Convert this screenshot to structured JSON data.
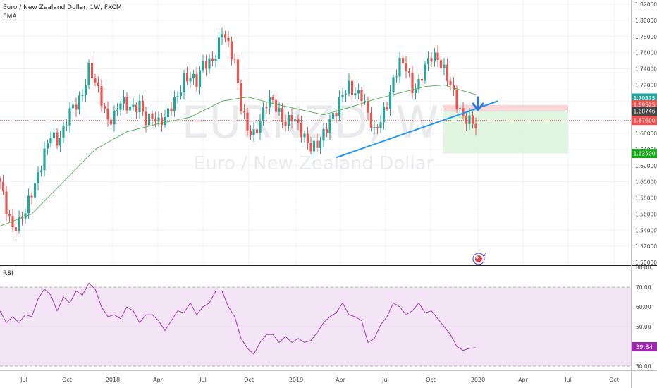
{
  "header": {
    "symbol_line": "Euro / New Zealand Dollar, 1W, FXCM",
    "indicator": "EMA"
  },
  "watermark": {
    "ticker": "EURNZD, W",
    "name": "Euro / New Zealand Dollar"
  },
  "rsi_panel": {
    "label": "RSI",
    "current_badge": "39.34"
  },
  "price_badges": [
    {
      "text": "1.70375",
      "color": "#26a69a"
    },
    {
      "text": "1.69525",
      "color": "#ef5350"
    },
    {
      "text": "1.68746",
      "color": "#444444"
    },
    {
      "text": "1.67600",
      "color": "#ef5350"
    },
    {
      "text": "1.63500",
      "color": "#19a51b"
    }
  ],
  "colors": {
    "up": "#26a69a",
    "down": "#ef5350",
    "ema": "#4caf50",
    "trendline": "#2196f3",
    "rsi": "#9c27b0",
    "rsi_band": "#f3e5f5",
    "stop_zone": "#f8c8c8",
    "target_zone": "#d9f2d9"
  },
  "icons": [
    "arrow-down-icon",
    "tradingview-logo-icon"
  ],
  "logo_badge": "2",
  "chart_data": [
    {
      "type": "candlestick",
      "title": "Euro / New Zealand Dollar, 1W, FXCM",
      "y_ticks": [
        "1.82000",
        "1.80000",
        "1.78000",
        "1.76000",
        "1.74000",
        "1.72000",
        "1.70000",
        "1.68000",
        "1.66000",
        "1.64000",
        "1.62000",
        "1.60000",
        "1.58000",
        "1.56000",
        "1.54000",
        "1.52000",
        "1.50000"
      ],
      "ylim": [
        1.5,
        1.822
      ],
      "x_ticks": [
        "Jul",
        "Oct",
        "2018",
        "Apr",
        "Jul",
        "Oct",
        "2019",
        "Apr",
        "Jul",
        "Oct",
        "2020",
        "Apr",
        "Jul",
        "Oct"
      ],
      "anchors": [
        [
          0,
          1.6
        ],
        [
          2,
          1.57
        ],
        [
          4,
          1.545
        ],
        [
          6,
          1.548
        ],
        [
          8,
          1.56
        ],
        [
          10,
          1.585
        ],
        [
          12,
          1.61
        ],
        [
          14,
          1.64
        ],
        [
          16,
          1.66
        ],
        [
          18,
          1.645
        ],
        [
          20,
          1.66
        ],
        [
          22,
          1.69
        ],
        [
          24,
          1.7
        ],
        [
          26,
          1.71
        ],
        [
          28,
          1.738
        ],
        [
          30,
          1.72
        ],
        [
          32,
          1.7
        ],
        [
          34,
          1.678
        ],
        [
          36,
          1.685
        ],
        [
          38,
          1.7
        ],
        [
          40,
          1.69
        ],
        [
          42,
          1.688
        ],
        [
          44,
          1.698
        ],
        [
          46,
          1.68
        ],
        [
          48,
          1.682
        ],
        [
          50,
          1.67
        ],
        [
          52,
          1.675
        ],
        [
          54,
          1.695
        ],
        [
          56,
          1.71
        ],
        [
          58,
          1.73
        ],
        [
          60,
          1.728
        ],
        [
          62,
          1.72
        ],
        [
          64,
          1.745
        ],
        [
          66,
          1.75
        ],
        [
          68,
          1.76
        ],
        [
          70,
          1.788
        ],
        [
          72,
          1.765
        ],
        [
          74,
          1.745
        ],
        [
          76,
          1.695
        ],
        [
          78,
          1.67
        ],
        [
          80,
          1.66
        ],
        [
          82,
          1.672
        ],
        [
          84,
          1.695
        ],
        [
          86,
          1.7
        ],
        [
          88,
          1.688
        ],
        [
          90,
          1.675
        ],
        [
          92,
          1.68
        ],
        [
          94,
          1.665
        ],
        [
          96,
          1.652
        ],
        [
          98,
          1.645
        ],
        [
          100,
          1.65
        ],
        [
          102,
          1.66
        ],
        [
          104,
          1.672
        ],
        [
          106,
          1.685
        ],
        [
          108,
          1.71
        ],
        [
          110,
          1.722
        ],
        [
          112,
          1.712
        ],
        [
          114,
          1.705
        ],
        [
          116,
          1.68
        ],
        [
          118,
          1.66
        ],
        [
          120,
          1.68
        ],
        [
          122,
          1.7
        ],
        [
          124,
          1.725
        ],
        [
          126,
          1.745
        ],
        [
          128,
          1.74
        ],
        [
          130,
          1.715
        ],
        [
          132,
          1.725
        ],
        [
          134,
          1.745
        ],
        [
          136,
          1.753
        ],
        [
          138,
          1.748
        ],
        [
          140,
          1.738
        ],
        [
          142,
          1.725
        ],
        [
          144,
          1.7
        ],
        [
          146,
          1.678
        ],
        [
          148,
          1.672
        ],
        [
          150,
          1.668
        ]
      ],
      "series": [
        {
          "name": "EMA",
          "values": [
            [
              0,
              1.545
            ],
            [
              10,
              1.56
            ],
            [
              20,
              1.6
            ],
            [
              30,
              1.64
            ],
            [
              40,
              1.662
            ],
            [
              50,
              1.672
            ],
            [
              60,
              1.68
            ],
            [
              70,
              1.7
            ],
            [
              78,
              1.705
            ],
            [
              86,
              1.697
            ],
            [
              94,
              1.69
            ],
            [
              102,
              1.683
            ],
            [
              110,
              1.692
            ],
            [
              118,
              1.702
            ],
            [
              126,
              1.71
            ],
            [
              134,
              1.718
            ],
            [
              140,
              1.72
            ],
            [
              144,
              1.715
            ],
            [
              150,
              1.708
            ]
          ]
        }
      ],
      "trendline": {
        "from": [
          106,
          1.63
        ],
        "to": [
          157,
          1.7
        ]
      },
      "position": {
        "entry": 1.6875,
        "stop": 1.6952,
        "target": 1.635
      }
    },
    {
      "type": "line",
      "title": "RSI",
      "y_ticks": [
        "80.00",
        "70.00",
        "60.00",
        "50.00",
        "40.00",
        "30.00"
      ],
      "ylim": [
        27,
        80
      ],
      "bands": [
        30,
        70
      ],
      "series": [
        {
          "name": "RSI",
          "values": [
            [
              0,
              58
            ],
            [
              2,
              52
            ],
            [
              4,
              55
            ],
            [
              6,
              52
            ],
            [
              8,
              56
            ],
            [
              10,
              55
            ],
            [
              12,
              64
            ],
            [
              14,
              69
            ],
            [
              16,
              66
            ],
            [
              18,
              58
            ],
            [
              20,
              65
            ],
            [
              22,
              62
            ],
            [
              24,
              68
            ],
            [
              26,
              66
            ],
            [
              28,
              72
            ],
            [
              30,
              69
            ],
            [
              32,
              60
            ],
            [
              34,
              55
            ],
            [
              36,
              56
            ],
            [
              38,
              54
            ],
            [
              40,
              60
            ],
            [
              42,
              58
            ],
            [
              44,
              52
            ],
            [
              46,
              56
            ],
            [
              48,
              56
            ],
            [
              50,
              53
            ],
            [
              52,
              48
            ],
            [
              54,
              53
            ],
            [
              56,
              58
            ],
            [
              58,
              57
            ],
            [
              60,
              62
            ],
            [
              62,
              56
            ],
            [
              64,
              60
            ],
            [
              66,
              62
            ],
            [
              68,
              68
            ],
            [
              70,
              68
            ],
            [
              72,
              60
            ],
            [
              74,
              55
            ],
            [
              76,
              44
            ],
            [
              78,
              39
            ],
            [
              80,
              36
            ],
            [
              82,
              42
            ],
            [
              84,
              46
            ],
            [
              86,
              46
            ],
            [
              88,
              42
            ],
            [
              90,
              45
            ],
            [
              92,
              42
            ],
            [
              94,
              44
            ],
            [
              96,
              42
            ],
            [
              98,
              43
            ],
            [
              100,
              47
            ],
            [
              102,
              52
            ],
            [
              104,
              55
            ],
            [
              106,
              57
            ],
            [
              108,
              62
            ],
            [
              110,
              56
            ],
            [
              112,
              55
            ],
            [
              114,
              53
            ],
            [
              116,
              42
            ],
            [
              118,
              44
            ],
            [
              120,
              51
            ],
            [
              122,
              55
            ],
            [
              124,
              62
            ],
            [
              126,
              60
            ],
            [
              128,
              56
            ],
            [
              130,
              58
            ],
            [
              132,
              62
            ],
            [
              134,
              57
            ],
            [
              136,
              58
            ],
            [
              138,
              54
            ],
            [
              140,
              50
            ],
            [
              142,
              46
            ],
            [
              144,
              40
            ],
            [
              146,
              38
            ],
            [
              148,
              39
            ],
            [
              150,
              39.34
            ]
          ]
        }
      ]
    }
  ]
}
